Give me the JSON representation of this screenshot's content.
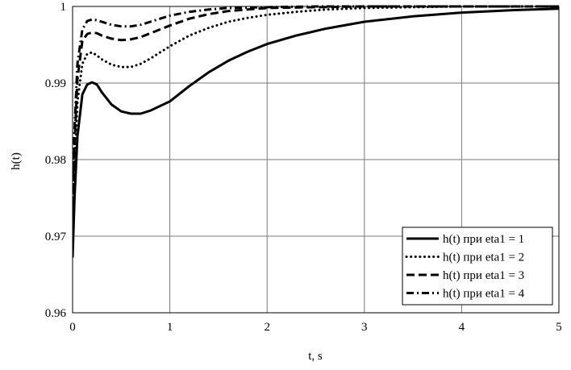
{
  "chart_data": {
    "type": "line",
    "xlabel": "t, s",
    "ylabel": "h(t)",
    "xlim": [
      0,
      5
    ],
    "ylim": [
      0.96,
      1.0
    ],
    "x_ticks": [
      0,
      1,
      2,
      3,
      4,
      5
    ],
    "x_tick_labels": [
      "0",
      "1",
      "2",
      "3",
      "4",
      "5"
    ],
    "y_ticks": [
      0.96,
      0.97,
      0.98,
      0.99,
      1.0
    ],
    "y_tick_labels": [
      "0.96",
      "0.97",
      "0.98",
      "0.99",
      "1"
    ],
    "grid": true,
    "legend_position": "bottom-right",
    "series": [
      {
        "name": "h(t) при eta1 = 1",
        "dash": "solid",
        "x": [
          0,
          0.02,
          0.05,
          0.1,
          0.15,
          0.2,
          0.25,
          0.3,
          0.4,
          0.5,
          0.6,
          0.7,
          0.8,
          0.9,
          1.0,
          1.2,
          1.4,
          1.6,
          1.8,
          2.0,
          2.3,
          2.6,
          3.0,
          3.5,
          4.0,
          4.5,
          5.0
        ],
        "y": [
          0.9672,
          0.975,
          0.983,
          0.9885,
          0.9898,
          0.9901,
          0.9898,
          0.9888,
          0.9872,
          0.9863,
          0.986,
          0.986,
          0.9864,
          0.987,
          0.9876,
          0.9896,
          0.9914,
          0.9929,
          0.9941,
          0.9951,
          0.9962,
          0.9971,
          0.998,
          0.9987,
          0.9992,
          0.9995,
          0.9997
        ]
      },
      {
        "name": "h(t) при eta1 = 2",
        "dash": "dotted",
        "x": [
          0,
          0.02,
          0.05,
          0.1,
          0.15,
          0.2,
          0.25,
          0.3,
          0.4,
          0.5,
          0.6,
          0.7,
          0.8,
          0.9,
          1.0,
          1.2,
          1.4,
          1.6,
          1.8,
          2.0,
          2.3,
          2.6,
          3.0,
          3.5,
          4.0,
          5.0
        ],
        "y": [
          0.9715,
          0.979,
          0.9875,
          0.9925,
          0.9938,
          0.994,
          0.9936,
          0.9931,
          0.9924,
          0.9921,
          0.9921,
          0.9925,
          0.9932,
          0.994,
          0.9948,
          0.9962,
          0.9972,
          0.998,
          0.9985,
          0.9989,
          0.9993,
          0.9996,
          0.9998,
          0.9999,
          1.0,
          1.0
        ]
      },
      {
        "name": "h(t) при eta1 = 3",
        "dash": "dashed",
        "x": [
          0,
          0.02,
          0.05,
          0.1,
          0.15,
          0.2,
          0.25,
          0.3,
          0.4,
          0.5,
          0.6,
          0.7,
          0.8,
          0.9,
          1.0,
          1.2,
          1.4,
          1.6,
          1.8,
          2.0,
          2.5,
          3.0,
          4.0,
          5.0
        ],
        "y": [
          0.974,
          0.982,
          0.9905,
          0.9955,
          0.9964,
          0.9966,
          0.9965,
          0.9962,
          0.9958,
          0.9956,
          0.9957,
          0.996,
          0.9965,
          0.997,
          0.9975,
          0.9984,
          0.999,
          0.9994,
          0.9996,
          0.9998,
          0.9999,
          1.0,
          1.0,
          1.0
        ]
      },
      {
        "name": "h(t) при eta1 = 4",
        "dash": "dash-dot",
        "x": [
          0,
          0.02,
          0.05,
          0.1,
          0.15,
          0.2,
          0.25,
          0.3,
          0.4,
          0.5,
          0.6,
          0.7,
          0.8,
          0.9,
          1.0,
          1.2,
          1.4,
          1.6,
          2.0,
          2.5,
          3.0,
          4.0,
          5.0
        ],
        "y": [
          0.976,
          0.984,
          0.9925,
          0.997,
          0.9981,
          0.9983,
          0.9982,
          0.998,
          0.9976,
          0.9974,
          0.9974,
          0.9976,
          0.998,
          0.9984,
          0.9988,
          0.9993,
          0.9996,
          0.9998,
          0.9999,
          1.0,
          1.0,
          1.0,
          1.0
        ]
      }
    ]
  }
}
